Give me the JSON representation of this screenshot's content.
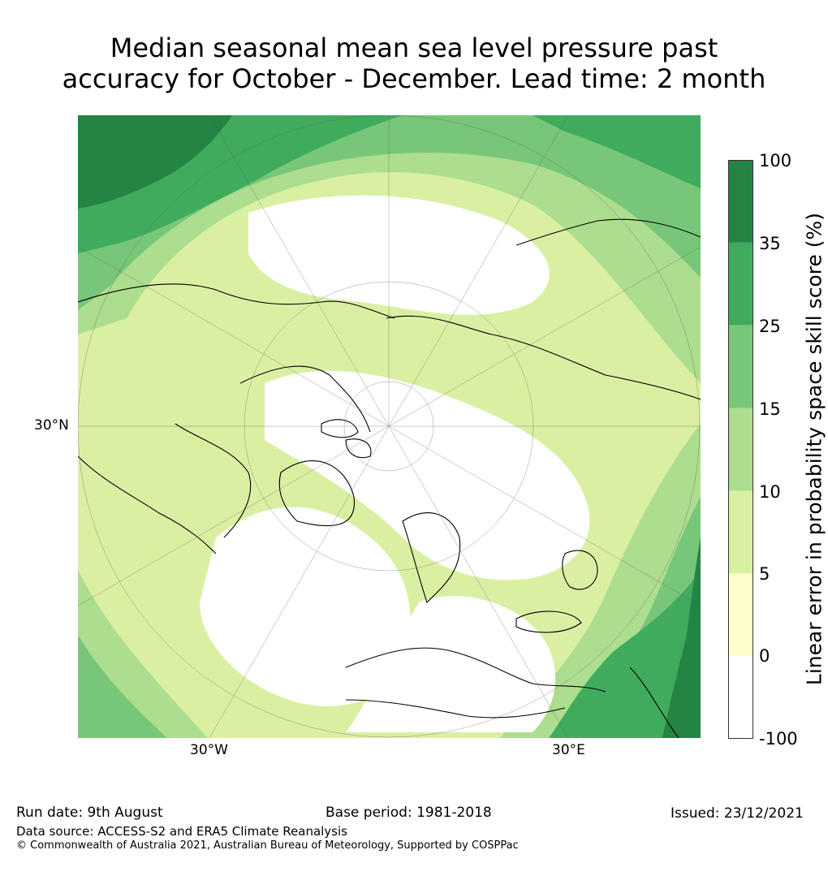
{
  "title": {
    "line1": "Median seasonal mean sea level pressure past",
    "line2": "accuracy for October - December. Lead time: 2 month"
  },
  "map": {
    "projection": "north polar stereographic",
    "lat_label": "30°N",
    "lon_labels": [
      "30°W",
      "30°E"
    ]
  },
  "colorbar": {
    "label": "Linear error in probability space skill score (%)",
    "ticks": [
      "100",
      "35",
      "25",
      "15",
      "10",
      "5",
      "0",
      "-100"
    ],
    "bins": [
      {
        "range": "35 to 100",
        "color": "#238443"
      },
      {
        "range": "25 to 35",
        "color": "#41ab5d"
      },
      {
        "range": "15 to 25",
        "color": "#78c679"
      },
      {
        "range": "10 to 15",
        "color": "#addd8e"
      },
      {
        "range": "5 to 10",
        "color": "#d9f0a3"
      },
      {
        "range": "0 to 5",
        "color": "#ffffcc"
      },
      {
        "range": "-100 to 0",
        "color": "#ffffff"
      }
    ]
  },
  "footer": {
    "run_date": "Run date: 9th August",
    "base_period": "Base period: 1981-2018",
    "issued": "Issued: 23/12/2021",
    "data_source": "Data source: ACCESS-S2 and ERA5 Climate Reanalysis",
    "copyright": "© Commonwealth of Australia 2021, Australian Bureau of Meteorology, Supported by COSPPac"
  }
}
